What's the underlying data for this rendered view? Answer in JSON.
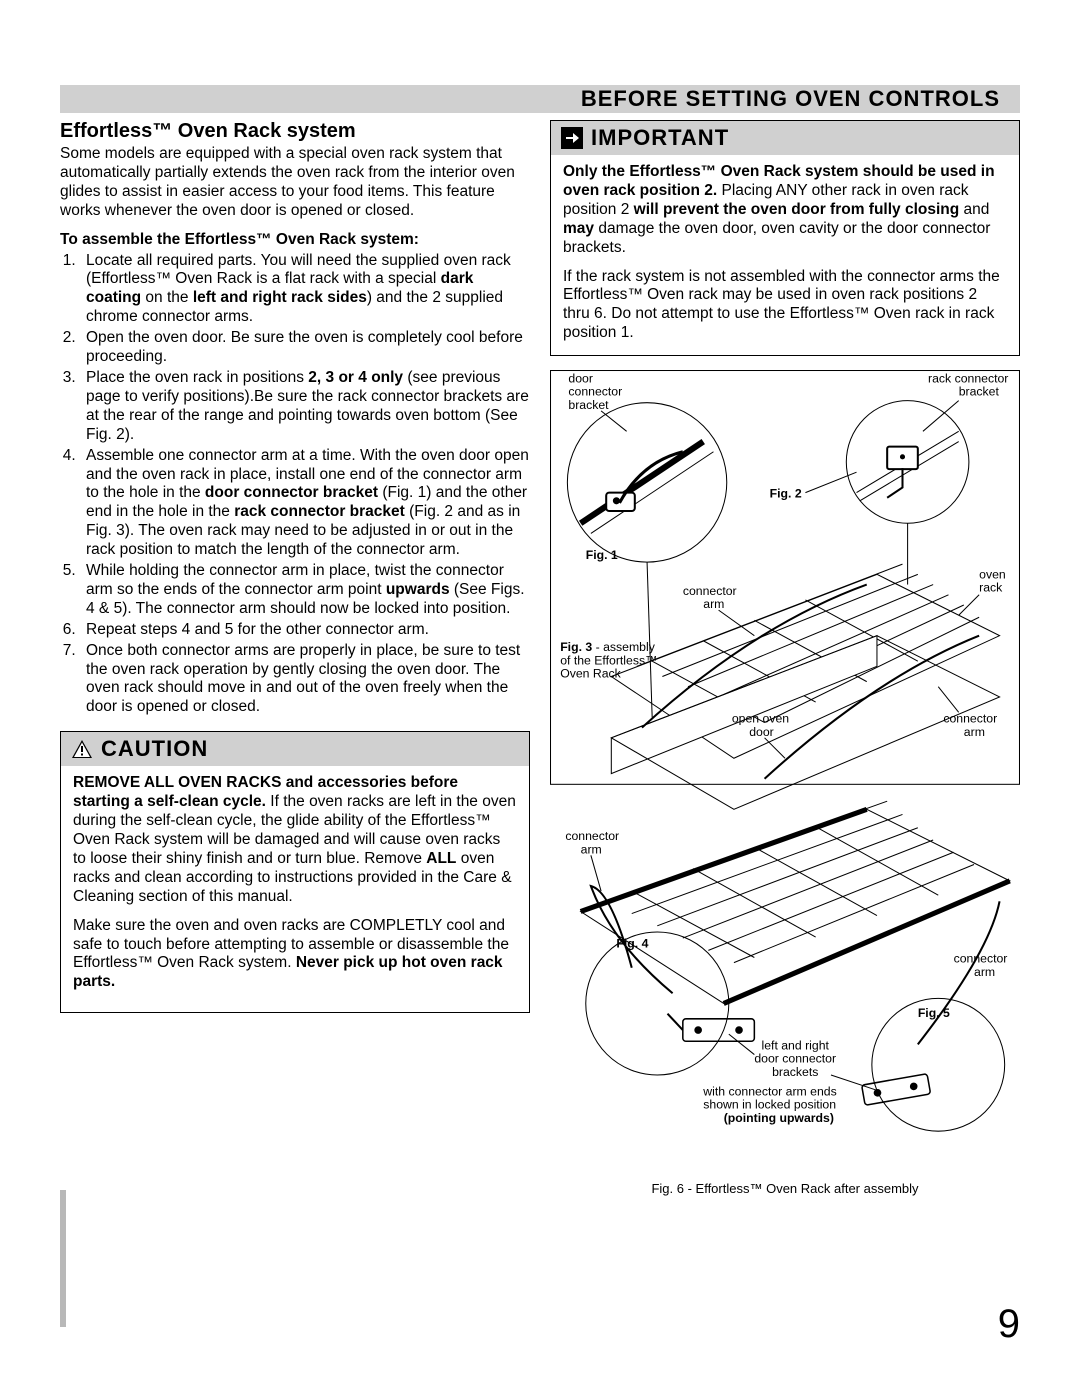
{
  "page": {
    "header": "BEFORE SETTING OVEN CONTROLS",
    "number": "9"
  },
  "left": {
    "title": "Effortless™ Oven Rack system",
    "intro": "Some models are equipped with a special oven rack system that automatically partially extends the oven rack from the interior oven glides to assist in easier access to your food items. This feature works whenever the oven door is opened or closed.",
    "assemble_heading": "To assemble the Effortless™ Oven Rack system:",
    "steps": [
      "Locate all required parts. You will need the supplied oven rack (Effortless™ Oven Rack is a flat rack with a special <b>dark coating</b> on the <b>left and right rack sides</b>) and the 2 supplied chrome connector arms.",
      "Open the oven door. Be sure the oven is completely cool before proceeding.",
      "Place the oven rack in positions <b>2, 3 or 4 only</b> (see previous page to verify positions).Be sure the rack connector brackets are at the rear of the range and pointing towards oven bottom (See Fig. 2).",
      "Assemble one connector arm at a time. With the oven door open and the oven rack in place, install one end of the connector arm to the hole in the <b>door connector bracket</b> (Fig. 1) and the other end in the hole in the <b>rack connector bracket</b> (Fig. 2 and as in Fig. 3). The oven rack may need to be adjusted in or out in the rack position to match the length of the connector arm.",
      "While holding the connector arm in place, twist the connector arm so the ends of the connector arm point <b>upwards</b> (See Figs. 4 & 5). The connector arm should now be locked into position.",
      "Repeat steps 4 and 5 for the other connector arm.",
      "Once both connector arms are properly in place, be sure to test the oven rack operation by gently closing the oven door. The oven rack should move in and out of the oven freely when the door is opened or closed."
    ],
    "caution": {
      "label": "CAUTION",
      "p1": "<b>REMOVE ALL OVEN RACKS and accessories before starting a self-clean cycle.</b> If the oven racks are left in the oven during the self-clean cycle,  the glide ability of the Effortless™ Oven Rack system will be damaged and will cause oven racks to loose their shiny finish and or turn blue. Remove <b>ALL</b> oven racks and clean according to instructions provided in the Care & Cleaning section of this manual.",
      "p2": "Make sure the oven and oven racks are COMPLETLY cool and safe to touch before attempting to assemble or disassemble the Effortless™ Oven Rack system.  <b>Never pick up hot oven rack parts.</b>"
    }
  },
  "right": {
    "important": {
      "label": "IMPORTANT",
      "p1": "<b>Only the Effortless™ Oven Rack system should be used in oven rack position 2.</b> Placing ANY other rack in oven rack position 2 <b>will prevent the oven door from fully closing</b> and <b>may</b> damage the oven door, oven cavity or the door connector brackets.",
      "p2": "If the rack system is not assembled with the connector arms the Effortless™ Oven rack may be used in oven rack positions 2 thru 6. Do not attempt to use the Effortless™ Oven rack in rack position 1."
    },
    "figure_labels": {
      "door_connector_bracket": "door connector bracket",
      "rack_connector_bracket": "rack connector bracket",
      "fig1": "Fig. 1",
      "fig2": "Fig. 2",
      "fig3": "Fig. 3",
      "fig3_txt": " - assembly of the Effortless™ Oven Rack",
      "connector_arm": "connector arm",
      "oven_rack": "oven rack",
      "open_oven_door": "open oven door",
      "fig4": "Fig. 4",
      "fig5": "Fig. 5",
      "lr_brackets": "left and right door connector brackets",
      "locked_txt": "with connector arm ends shown in locked  position",
      "pointing_upwards": "(pointing upwards)",
      "fig6_caption": "Fig. 6 - Effortless™ Oven Rack after assembly"
    },
    "style": {
      "stroke": "#000000",
      "label_fontsize": 12,
      "figlabel_fontsize": 12
    }
  }
}
